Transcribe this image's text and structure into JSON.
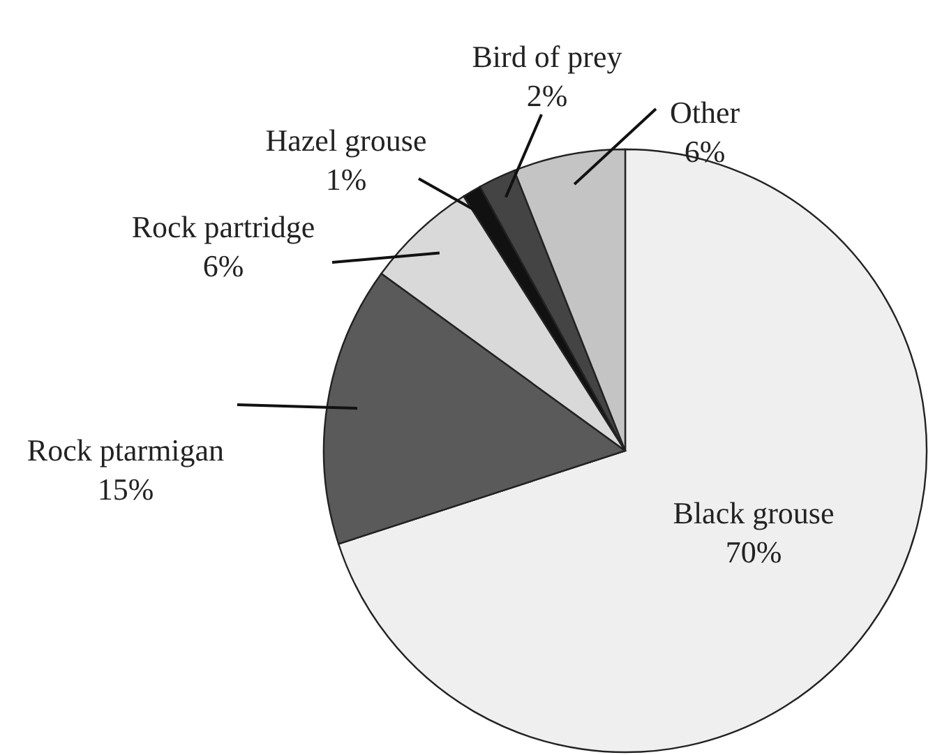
{
  "chart_data": {
    "type": "pie",
    "categories": [
      "Black grouse",
      "Rock ptarmigan",
      "Rock partridge",
      "Hazel grouse",
      "Bird of prey",
      "Other"
    ],
    "values": [
      70,
      15,
      6,
      1,
      2,
      6
    ],
    "value_labels": [
      "70%",
      "15%",
      "6%",
      "1%",
      "2%",
      "6%"
    ],
    "colors": [
      "#efefef",
      "#5a5a5a",
      "#d9d9d9",
      "#111111",
      "#444444",
      "#c4c4c4"
    ]
  }
}
